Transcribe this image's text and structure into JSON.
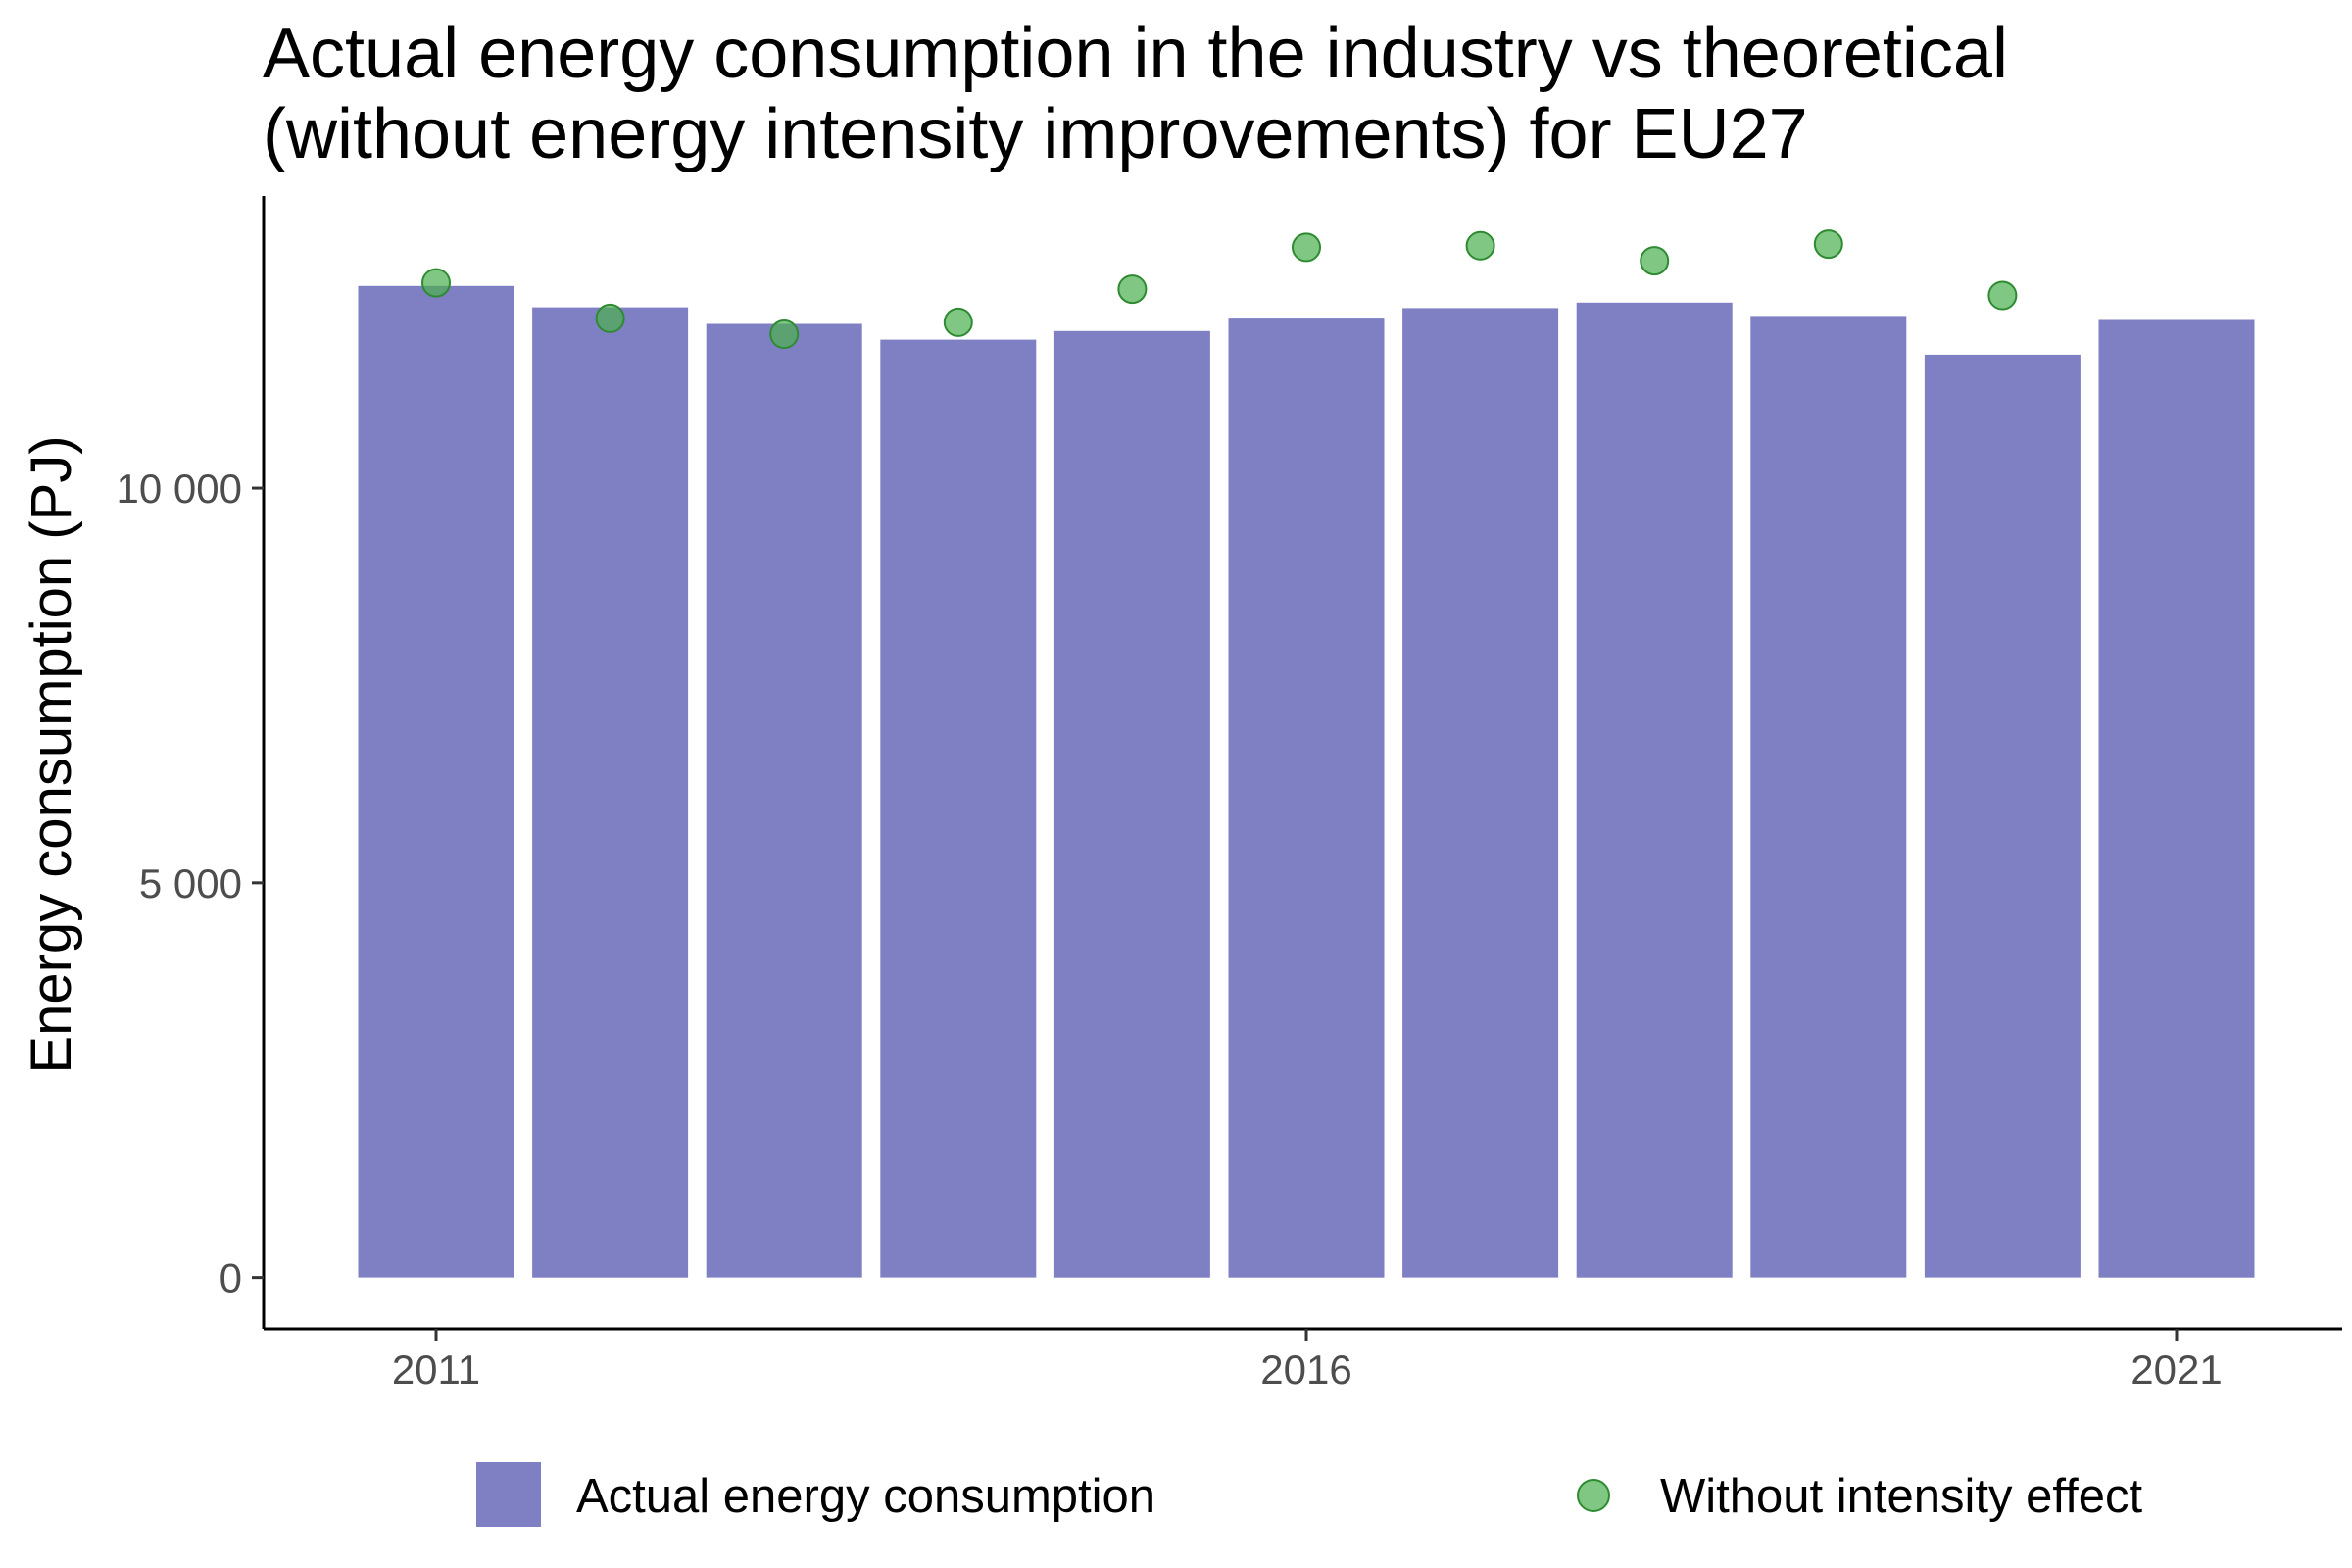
{
  "chart_data": {
    "type": "bar",
    "title_lines": [
      "Actual energy consumption in the industry vs theoretical",
      "(without energy intensity improvements) for  EU27"
    ],
    "xlabel": "",
    "ylabel": "Energy consumption (PJ)",
    "x": [
      2011,
      2012,
      2013,
      2014,
      2015,
      2016,
      2017,
      2018,
      2019,
      2020,
      2021
    ],
    "x_ticks": [
      {
        "value": 2011,
        "label": "2011"
      },
      {
        "value": 2016,
        "label": "2016"
      },
      {
        "value": 2021,
        "label": "2021"
      }
    ],
    "y_ticks": [
      {
        "value": 0,
        "label": "0"
      },
      {
        "value": 5000,
        "label": "5 000"
      },
      {
        "value": 10000,
        "label": "10 000"
      }
    ],
    "ylim": [
      -650,
      13700
    ],
    "grid": false,
    "legend_position": "bottom",
    "series": [
      {
        "name": "Actual energy consumption",
        "type": "bar",
        "color": "#7f7fc4",
        "values": [
          12560,
          12290,
          12080,
          11880,
          11990,
          12160,
          12280,
          12350,
          12180,
          11690,
          12130
        ]
      },
      {
        "name": "Without intensity effect",
        "type": "point",
        "color": "#4caf50",
        "values": [
          12600,
          12150,
          11950,
          12100,
          12520,
          13050,
          13070,
          12880,
          13090,
          12440,
          null
        ]
      }
    ]
  }
}
